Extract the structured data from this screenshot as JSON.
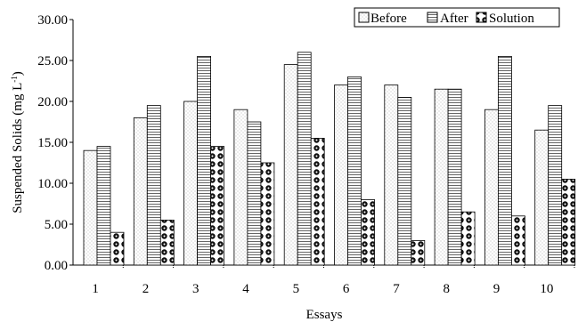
{
  "chart_data": {
    "type": "bar",
    "xlabel": "Essays",
    "ylabel_main": "Suspended Solids (mg L",
    "ylabel_sup": "-1",
    "ylabel_close": ")",
    "categories": [
      "1",
      "2",
      "3",
      "4",
      "5",
      "6",
      "7",
      "8",
      "9",
      "10"
    ],
    "ylim": [
      0,
      30
    ],
    "yticks": [
      "0.00",
      "5.00",
      "10.00",
      "15.00",
      "20.00",
      "25.00",
      "30.00"
    ],
    "grid": false,
    "legend_position": "top-right",
    "series": [
      {
        "name": "Before",
        "pattern": "dots",
        "values": [
          14.0,
          18.0,
          20.0,
          19.0,
          24.5,
          22.0,
          22.0,
          21.5,
          19.0,
          16.5
        ]
      },
      {
        "name": "After",
        "pattern": "hlines",
        "values": [
          14.5,
          19.5,
          25.5,
          17.5,
          26.0,
          23.0,
          20.5,
          21.5,
          25.5,
          19.5
        ]
      },
      {
        "name": "Solution",
        "pattern": "blackdots",
        "values": [
          4.0,
          5.5,
          14.5,
          12.5,
          15.5,
          8.0,
          3.0,
          6.5,
          6.0,
          10.5
        ]
      }
    ]
  }
}
